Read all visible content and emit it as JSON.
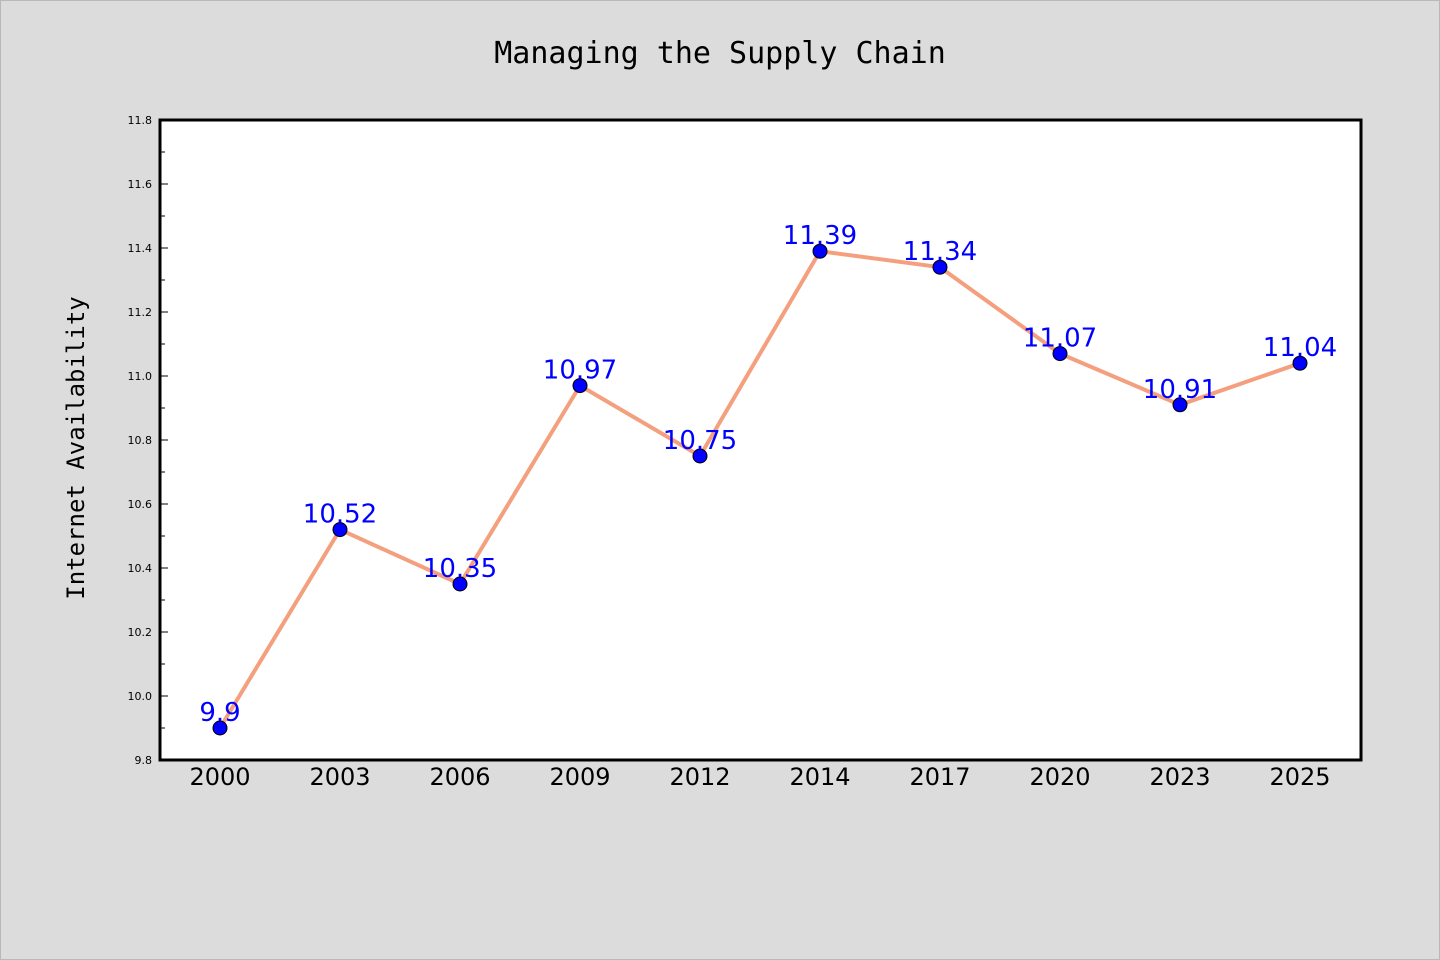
{
  "chart_data": {
    "type": "line",
    "title": "Managing the Supply Chain",
    "xlabel": "",
    "ylabel": "Internet Availability",
    "categories": [
      "2000",
      "2003",
      "2006",
      "2009",
      "2012",
      "2014",
      "2017",
      "2020",
      "2023",
      "2025"
    ],
    "series": [
      {
        "values": [
          9.9,
          10.52,
          10.35,
          10.97,
          10.75,
          11.39,
          11.34,
          11.07,
          10.91,
          11.04
        ]
      }
    ],
    "data_labels": [
      "9.9",
      "10.52",
      "10.35",
      "10.97",
      "10.75",
      "11.39",
      "11.34",
      "11.07",
      "10.91",
      "11.04"
    ],
    "ylim": [
      9.8,
      11.8
    ],
    "yticks": [
      "9.8",
      "10.0",
      "10.2",
      "10.4",
      "10.6",
      "10.8",
      "11.0",
      "11.2",
      "11.4",
      "11.6",
      "11.8"
    ],
    "grid": false,
    "legend": "none",
    "colors": {
      "line": "#f4a07e",
      "marker": "#0000ff",
      "marker_edge": "#000000",
      "data_label": "#0000ff",
      "plot_background": "#ffffff",
      "figure_background": "#dcdcdc"
    }
  }
}
